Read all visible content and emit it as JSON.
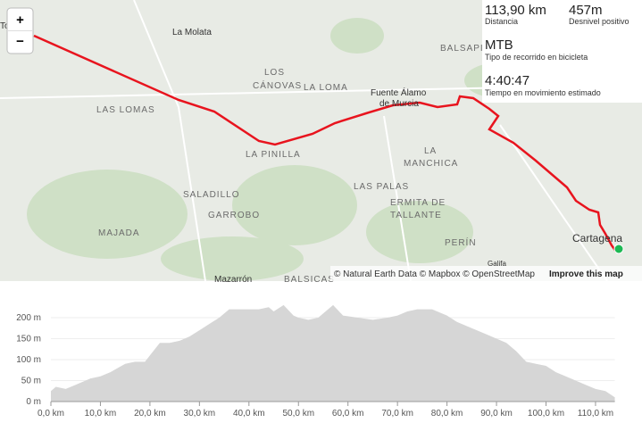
{
  "map": {
    "labels": [
      "To",
      "La Molata",
      "BALSAPI",
      "LOS",
      "CÁNOVAS",
      "LA LOMA",
      "Fuente Álamo",
      "de Murcia",
      "LAS LOMAS",
      "LA PINILLA",
      "LA",
      "MANCHICA",
      "SALADILLO",
      "LAS PALAS",
      "ERMITA DE",
      "TALLANTE",
      "GARROBO",
      "MAJADA",
      "PERÍN",
      "Cartagena",
      "Galifa",
      "Mazarrón",
      "BALSICAS"
    ],
    "attribution": "© Natural Earth Data © Mapbox © OpenStreetMap",
    "improve": "Improve this map",
    "zoom_in": "+",
    "zoom_out": "−"
  },
  "stats": [
    {
      "value": "113,90 km",
      "label": "Distancia"
    },
    {
      "value": "457m",
      "label": "Desnivel positivo"
    },
    {
      "value": "MTB",
      "label": "Tipo de recorrido en bicicleta"
    },
    {
      "value": "4:40:47",
      "label": "Tiempo en movimiento estimado"
    }
  ],
  "chart_data": {
    "type": "area",
    "color": "#d6d6d6",
    "x": [
      0,
      1,
      3,
      5,
      8,
      10,
      12,
      15,
      17,
      19,
      20,
      22,
      24,
      26,
      28,
      30,
      32,
      34,
      36,
      38,
      40,
      42,
      44,
      45,
      47,
      49,
      50,
      52,
      54,
      55,
      57,
      59,
      62,
      65,
      68,
      70,
      72,
      74,
      77,
      80,
      82,
      85,
      88,
      90,
      92,
      94,
      96,
      98,
      100,
      102,
      105,
      108,
      110,
      112,
      113.9
    ],
    "values": [
      25,
      35,
      30,
      40,
      55,
      60,
      70,
      90,
      95,
      95,
      110,
      140,
      140,
      145,
      155,
      170,
      185,
      200,
      220,
      220,
      220,
      220,
      225,
      215,
      230,
      205,
      200,
      195,
      200,
      210,
      230,
      205,
      200,
      195,
      200,
      205,
      215,
      220,
      220,
      205,
      190,
      175,
      160,
      150,
      140,
      120,
      95,
      90,
      85,
      70,
      55,
      40,
      30,
      25,
      10
    ],
    "xlim": [
      0,
      113.9
    ],
    "ylim": [
      0,
      240
    ],
    "xticks": [
      {
        "value": 0,
        "label": "0,0 km"
      },
      {
        "value": 10,
        "label": "10,0 km"
      },
      {
        "value": 20,
        "label": "20,0 km"
      },
      {
        "value": 30,
        "label": "30,0 km"
      },
      {
        "value": 40,
        "label": "40,0 km"
      },
      {
        "value": 50,
        "label": "50,0 km"
      },
      {
        "value": 60,
        "label": "60,0 km"
      },
      {
        "value": 70,
        "label": "70,0 km"
      },
      {
        "value": 80,
        "label": "80,0 km"
      },
      {
        "value": 90,
        "label": "90,0 km"
      },
      {
        "value": 100,
        "label": "100,0 km"
      },
      {
        "value": 110,
        "label": "110,0 km"
      }
    ],
    "yticks": [
      {
        "value": 0,
        "label": "0 m"
      },
      {
        "value": 50,
        "label": "50 m"
      },
      {
        "value": 100,
        "label": "100 m"
      },
      {
        "value": 150,
        "label": "150 m"
      },
      {
        "value": 200,
        "label": "200 m"
      }
    ],
    "grid": true
  }
}
